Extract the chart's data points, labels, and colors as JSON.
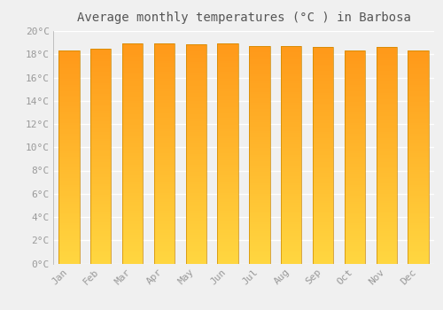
{
  "title": "Average monthly temperatures (°C ) in Barbosa",
  "months": [
    "Jan",
    "Feb",
    "Mar",
    "Apr",
    "May",
    "Jun",
    "Jul",
    "Aug",
    "Sep",
    "Oct",
    "Nov",
    "Dec"
  ],
  "values": [
    18.3,
    18.5,
    18.9,
    18.95,
    18.85,
    18.95,
    18.7,
    18.7,
    18.6,
    18.3,
    18.6,
    18.3
  ],
  "ylim": [
    0,
    20
  ],
  "yticks": [
    0,
    2,
    4,
    6,
    8,
    10,
    12,
    14,
    16,
    18,
    20
  ],
  "ytick_labels": [
    "0°C",
    "2°C",
    "4°C",
    "6°C",
    "8°C",
    "10°C",
    "12°C",
    "14°C",
    "16°C",
    "18°C",
    "20°C"
  ],
  "background_color": "#f0f0f0",
  "plot_bg_color": "#f0f0f0",
  "grid_color": "#ffffff",
  "bar_color_bottom": "#FFD740",
  "bar_color_top": "#FFA020",
  "bar_edge_color": "#CC8800",
  "title_fontsize": 10,
  "tick_fontsize": 8,
  "font_family": "monospace",
  "tick_color": "#999999",
  "title_color": "#555555",
  "bar_width": 0.65
}
